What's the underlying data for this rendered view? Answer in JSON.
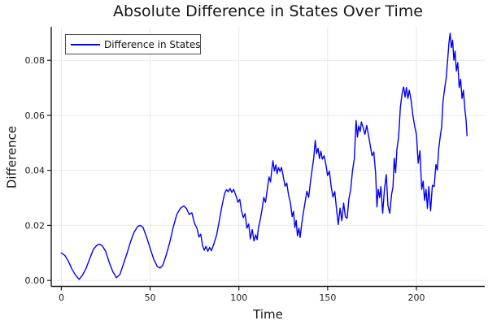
{
  "title": "Absolute Difference in States Over Time",
  "chart_data": {
    "type": "line",
    "title": "Absolute Difference in States Over Time",
    "xlabel": "Time",
    "ylabel": "Difference",
    "grid": true,
    "legend": {
      "position": "top-left",
      "entries": [
        {
          "label": "Difference in States",
          "color": "#0000ff"
        }
      ]
    },
    "xlim": [
      -5.7,
      238.5
    ],
    "ylim": [
      -0.00216,
      0.09216
    ],
    "x_ticks": {
      "values": [
        0,
        50,
        100,
        150,
        200
      ],
      "labels": [
        "0",
        "50",
        "100",
        "150",
        "200"
      ]
    },
    "y_ticks": {
      "values": [
        0.0,
        0.02,
        0.04,
        0.06,
        0.08
      ],
      "labels": [
        "0.00",
        "0.02",
        "0.04",
        "0.06",
        "0.08"
      ]
    },
    "colors": {
      "line": "#0000ff",
      "grid": "#e9e9e9",
      "axis": "#1b1b1b",
      "tick_label": "#202020",
      "background": "#ffffff"
    },
    "series": [
      {
        "name": "Difference in States",
        "color": "#0000ff",
        "points": [
          [
            0,
            0.01
          ],
          [
            2,
            0.0091
          ],
          [
            4,
            0.0069
          ],
          [
            6,
            0.0041
          ],
          [
            8,
            0.0019
          ],
          [
            10,
            0.0004
          ],
          [
            12,
            0.002
          ],
          [
            14,
            0.0045
          ],
          [
            16,
            0.008
          ],
          [
            18,
            0.0112
          ],
          [
            20,
            0.0128
          ],
          [
            21.5,
            0.0132
          ],
          [
            23,
            0.0127
          ],
          [
            25,
            0.0105
          ],
          [
            27,
            0.0065
          ],
          [
            29,
            0.0032
          ],
          [
            31,
            0.001
          ],
          [
            33,
            0.0022
          ],
          [
            35,
            0.006
          ],
          [
            37,
            0.0099
          ],
          [
            39,
            0.0141
          ],
          [
            41,
            0.0176
          ],
          [
            43,
            0.0196
          ],
          [
            44.5,
            0.02
          ],
          [
            46,
            0.0193
          ],
          [
            48,
            0.0158
          ],
          [
            50,
            0.0117
          ],
          [
            52,
            0.0078
          ],
          [
            54,
            0.0051
          ],
          [
            55.5,
            0.0045
          ],
          [
            57,
            0.0053
          ],
          [
            59,
            0.0091
          ],
          [
            61,
            0.0137
          ],
          [
            63,
            0.0192
          ],
          [
            65,
            0.0239
          ],
          [
            67,
            0.0262
          ],
          [
            69,
            0.0271
          ],
          [
            70.5,
            0.0261
          ],
          [
            72,
            0.024
          ],
          [
            73.5,
            0.0246
          ],
          [
            75,
            0.0208
          ],
          [
            76.5,
            0.0188
          ],
          [
            77.5,
            0.0158
          ],
          [
            78.5,
            0.0168
          ],
          [
            79.5,
            0.0128
          ],
          [
            80.5,
            0.011
          ],
          [
            81.5,
            0.0124
          ],
          [
            82.5,
            0.0106
          ],
          [
            83.5,
            0.012
          ],
          [
            84.5,
            0.0108
          ],
          [
            86,
            0.0134
          ],
          [
            87.5,
            0.0166
          ],
          [
            89,
            0.0218
          ],
          [
            90.5,
            0.0272
          ],
          [
            92,
            0.0316
          ],
          [
            93,
            0.033
          ],
          [
            94,
            0.0322
          ],
          [
            95,
            0.0334
          ],
          [
            96,
            0.032
          ],
          [
            97,
            0.0331
          ],
          [
            98.5,
            0.0306
          ],
          [
            99.5,
            0.0284
          ],
          [
            100.5,
            0.0295
          ],
          [
            101.5,
            0.0252
          ],
          [
            102.5,
            0.0228
          ],
          [
            103.5,
            0.0243
          ],
          [
            104.5,
            0.019
          ],
          [
            105.5,
            0.0205
          ],
          [
            106.5,
            0.0151
          ],
          [
            107.5,
            0.0185
          ],
          [
            108.5,
            0.0143
          ],
          [
            109.5,
            0.0166
          ],
          [
            110.3,
            0.0148
          ],
          [
            111,
            0.019
          ],
          [
            112,
            0.022
          ],
          [
            113,
            0.0256
          ],
          [
            114,
            0.0302
          ],
          [
            115,
            0.0284
          ],
          [
            116,
            0.033
          ],
          [
            117,
            0.0376
          ],
          [
            117.8,
            0.0358
          ],
          [
            118.5,
            0.04
          ],
          [
            119.2,
            0.0435
          ],
          [
            120,
            0.0398
          ],
          [
            120.8,
            0.042
          ],
          [
            121.5,
            0.0388
          ],
          [
            122.3,
            0.041
          ],
          [
            123.2,
            0.0396
          ],
          [
            124,
            0.0411
          ],
          [
            125,
            0.0378
          ],
          [
            126,
            0.0342
          ],
          [
            127,
            0.0354
          ],
          [
            128,
            0.031
          ],
          [
            129,
            0.0284
          ],
          [
            130,
            0.0232
          ],
          [
            130.8,
            0.0251
          ],
          [
            131.5,
            0.0192
          ],
          [
            132.3,
            0.0218
          ],
          [
            133,
            0.0162
          ],
          [
            133.8,
            0.019
          ],
          [
            134.5,
            0.0156
          ],
          [
            135.3,
            0.0202
          ],
          [
            136.3,
            0.0244
          ],
          [
            137.3,
            0.0284
          ],
          [
            138.3,
            0.0324
          ],
          [
            139.3,
            0.0302
          ],
          [
            140.3,
            0.0358
          ],
          [
            141.3,
            0.0404
          ],
          [
            142.2,
            0.0446
          ],
          [
            143,
            0.0509
          ],
          [
            143.8,
            0.0461
          ],
          [
            144.6,
            0.048
          ],
          [
            145.4,
            0.0443
          ],
          [
            146.2,
            0.0469
          ],
          [
            147,
            0.0441
          ],
          [
            148,
            0.0453
          ],
          [
            149,
            0.0421
          ],
          [
            150,
            0.0381
          ],
          [
            151,
            0.0397
          ],
          [
            152,
            0.0341
          ],
          [
            153,
            0.0303
          ],
          [
            154,
            0.0323
          ],
          [
            155,
            0.0261
          ],
          [
            156,
            0.0203
          ],
          [
            157,
            0.0263
          ],
          [
            158,
            0.0217
          ],
          [
            159,
            0.0281
          ],
          [
            160,
            0.0231
          ],
          [
            161,
            0.0226
          ],
          [
            162,
            0.0297
          ],
          [
            163,
            0.0331
          ],
          [
            164,
            0.0399
          ],
          [
            165,
            0.0441
          ],
          [
            166,
            0.0581
          ],
          [
            166.8,
            0.0521
          ],
          [
            167.5,
            0.0561
          ],
          [
            168.3,
            0.0541
          ],
          [
            169,
            0.0576
          ],
          [
            170,
            0.0555
          ],
          [
            171,
            0.0531
          ],
          [
            172,
            0.0563
          ],
          [
            173,
            0.0529
          ],
          [
            174,
            0.0491
          ],
          [
            175,
            0.0453
          ],
          [
            176,
            0.0467
          ],
          [
            177,
            0.0391
          ],
          [
            177.8,
            0.0267
          ],
          [
            178.5,
            0.0331
          ],
          [
            179.3,
            0.0301
          ],
          [
            180,
            0.0341
          ],
          [
            181,
            0.0244
          ],
          [
            182,
            0.0331
          ],
          [
            183,
            0.0385
          ],
          [
            184,
            0.0271
          ],
          [
            185,
            0.0244
          ],
          [
            186,
            0.0311
          ],
          [
            186.8,
            0.0341
          ],
          [
            187.5,
            0.0444
          ],
          [
            188.3,
            0.0391
          ],
          [
            189,
            0.0476
          ],
          [
            190,
            0.0521
          ],
          [
            191,
            0.0631
          ],
          [
            192,
            0.0681
          ],
          [
            192.8,
            0.0703
          ],
          [
            193.6,
            0.0666
          ],
          [
            194.4,
            0.0701
          ],
          [
            195.2,
            0.0661
          ],
          [
            196,
            0.0691
          ],
          [
            197,
            0.0656
          ],
          [
            198,
            0.0601
          ],
          [
            199,
            0.0561
          ],
          [
            200,
            0.0531
          ],
          [
            201,
            0.0426
          ],
          [
            202,
            0.0471
          ],
          [
            203,
            0.0331
          ],
          [
            203.8,
            0.0361
          ],
          [
            204.6,
            0.0291
          ],
          [
            205.4,
            0.0331
          ],
          [
            206.2,
            0.0262
          ],
          [
            207,
            0.0341
          ],
          [
            208,
            0.0253
          ],
          [
            209,
            0.0346
          ],
          [
            210,
            0.0341
          ],
          [
            211,
            0.0421
          ],
          [
            211.8,
            0.0401
          ],
          [
            212.6,
            0.0481
          ],
          [
            213.4,
            0.0521
          ],
          [
            214.2,
            0.0559
          ],
          [
            215,
            0.0651
          ],
          [
            216,
            0.0701
          ],
          [
            216.8,
            0.0736
          ],
          [
            217.6,
            0.0801
          ],
          [
            218.3,
            0.0861
          ],
          [
            219,
            0.0898
          ],
          [
            219.7,
            0.0846
          ],
          [
            220.4,
            0.0873
          ],
          [
            221.1,
            0.0801
          ],
          [
            221.8,
            0.0833
          ],
          [
            222.5,
            0.0761
          ],
          [
            223.3,
            0.0791
          ],
          [
            224.1,
            0.0701
          ],
          [
            224.9,
            0.0731
          ],
          [
            225.7,
            0.0661
          ],
          [
            226.5,
            0.0691
          ],
          [
            227.3,
            0.0621
          ],
          [
            228,
            0.0581
          ],
          [
            228.5,
            0.0526
          ]
        ]
      }
    ]
  }
}
